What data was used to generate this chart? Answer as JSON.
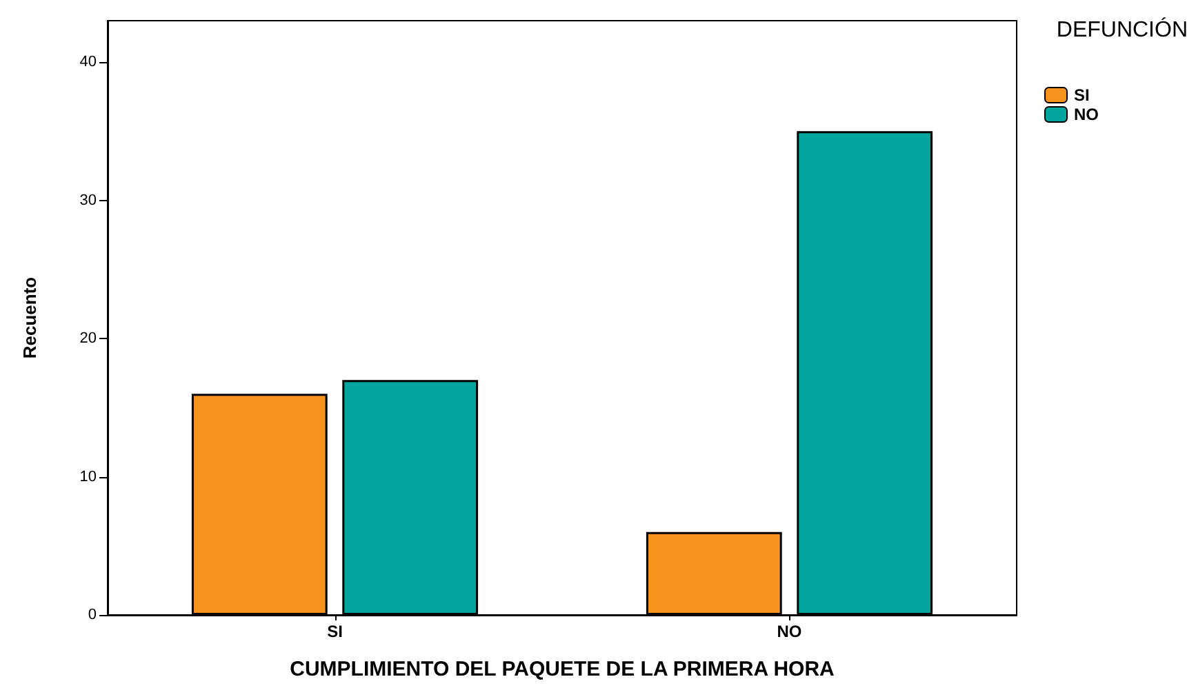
{
  "chart_data": {
    "type": "bar",
    "xlabel": "CUMPLIMIENTO DEL PAQUETE DE LA PRIMERA HORA",
    "ylabel": "Recuento",
    "legend_title": "DEFUNCIÓN",
    "categories": [
      "SI",
      "NO"
    ],
    "series": [
      {
        "name": "SI",
        "color": "#f7941d",
        "values": [
          16,
          6
        ]
      },
      {
        "name": "NO",
        "color": "#00a59d",
        "values": [
          17,
          35
        ]
      }
    ],
    "ylim": [
      0,
      43
    ],
    "yticks": [
      0,
      10,
      20,
      30,
      40
    ],
    "grid": false,
    "legend": "top right"
  }
}
